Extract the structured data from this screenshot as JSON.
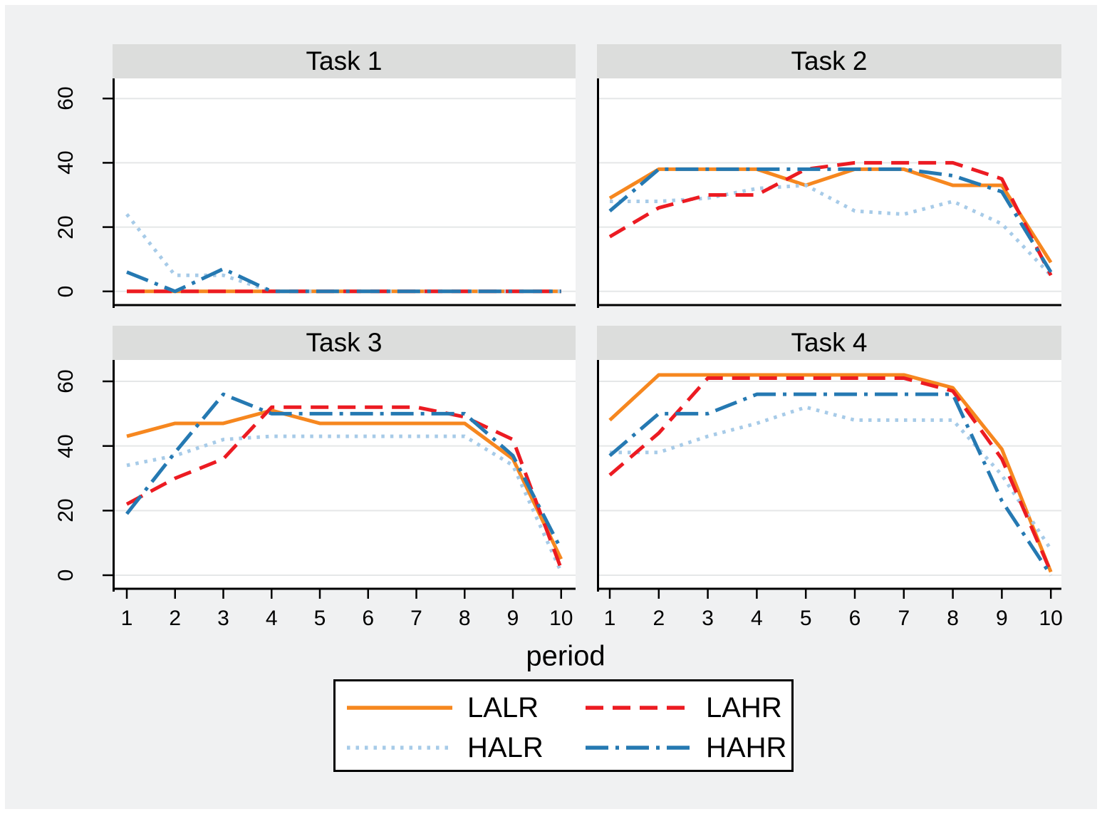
{
  "colors": {
    "page_background": "#f0f1f2",
    "plot_background": "#ffffff",
    "title_strip": "#dcdddc",
    "gridline": "#e5e7e8",
    "axis": "#000000"
  },
  "chart_data": {
    "type": "line",
    "layout": "2x2 small multiples (by task)",
    "x": [
      1,
      2,
      3,
      4,
      5,
      6,
      7,
      8,
      9,
      10
    ],
    "xlabel": "period",
    "yticks": [
      0,
      20,
      40,
      60
    ],
    "ylim": [
      0,
      60
    ],
    "grid": true,
    "legend_position": "bottom",
    "series_styles": [
      {
        "name": "LALR",
        "color": "#f6871f",
        "dash": "solid"
      },
      {
        "name": "LAHR",
        "color": "#ec1b22",
        "dash": "dashed"
      },
      {
        "name": "HALR",
        "color": "#a7cbe8",
        "dash": "dotted"
      },
      {
        "name": "HAHR",
        "color": "#2579b2",
        "dash": "dash-dot"
      }
    ],
    "panels": [
      {
        "title": "Task 1",
        "series": [
          {
            "name": "LALR",
            "values": [
              0,
              0,
              0,
              0,
              0,
              0,
              0,
              0,
              0,
              0
            ]
          },
          {
            "name": "LAHR",
            "values": [
              0,
              0,
              0,
              0,
              0,
              0,
              0,
              0,
              0,
              0
            ]
          },
          {
            "name": "HALR",
            "values": [
              24,
              5,
              5,
              0,
              0,
              0,
              0,
              0,
              0,
              0
            ]
          },
          {
            "name": "HAHR",
            "values": [
              6,
              0,
              7,
              0,
              0,
              0,
              0,
              0,
              0,
              0
            ]
          }
        ]
      },
      {
        "title": "Task 2",
        "series": [
          {
            "name": "LALR",
            "values": [
              29,
              38,
              38,
              38,
              33,
              38,
              38,
              33,
              33,
              9
            ]
          },
          {
            "name": "LAHR",
            "values": [
              17,
              26,
              30,
              30,
              38,
              40,
              40,
              40,
              35,
              5
            ]
          },
          {
            "name": "HALR",
            "values": [
              28,
              28,
              29,
              32,
              33,
              25,
              24,
              28,
              21,
              5
            ]
          },
          {
            "name": "HAHR",
            "values": [
              25,
              38,
              38,
              38,
              38,
              38,
              38,
              36,
              31,
              6
            ]
          }
        ]
      },
      {
        "title": "Task 3",
        "series": [
          {
            "name": "LALR",
            "values": [
              43,
              47,
              47,
              51,
              47,
              47,
              47,
              47,
              36,
              5
            ]
          },
          {
            "name": "LAHR",
            "values": [
              22,
              30,
              36,
              52,
              52,
              52,
              52,
              49,
              42,
              2
            ]
          },
          {
            "name": "HALR",
            "values": [
              34,
              37,
              42,
              43,
              43,
              43,
              43,
              43,
              34,
              1
            ]
          },
          {
            "name": "HAHR",
            "values": [
              19,
              38,
              56,
              50,
              50,
              50,
              50,
              50,
              37,
              8
            ]
          }
        ]
      },
      {
        "title": "Task 4",
        "series": [
          {
            "name": "LALR",
            "values": [
              48,
              62,
              62,
              62,
              62,
              62,
              62,
              58,
              39,
              1
            ]
          },
          {
            "name": "LAHR",
            "values": [
              31,
              44,
              61,
              61,
              61,
              61,
              61,
              57,
              36,
              1
            ]
          },
          {
            "name": "HALR",
            "values": [
              38,
              38,
              43,
              47,
              52,
              48,
              48,
              48,
              31,
              8
            ]
          },
          {
            "name": "HAHR",
            "values": [
              37,
              50,
              50,
              56,
              56,
              56,
              56,
              56,
              23,
              0
            ]
          }
        ]
      }
    ]
  }
}
